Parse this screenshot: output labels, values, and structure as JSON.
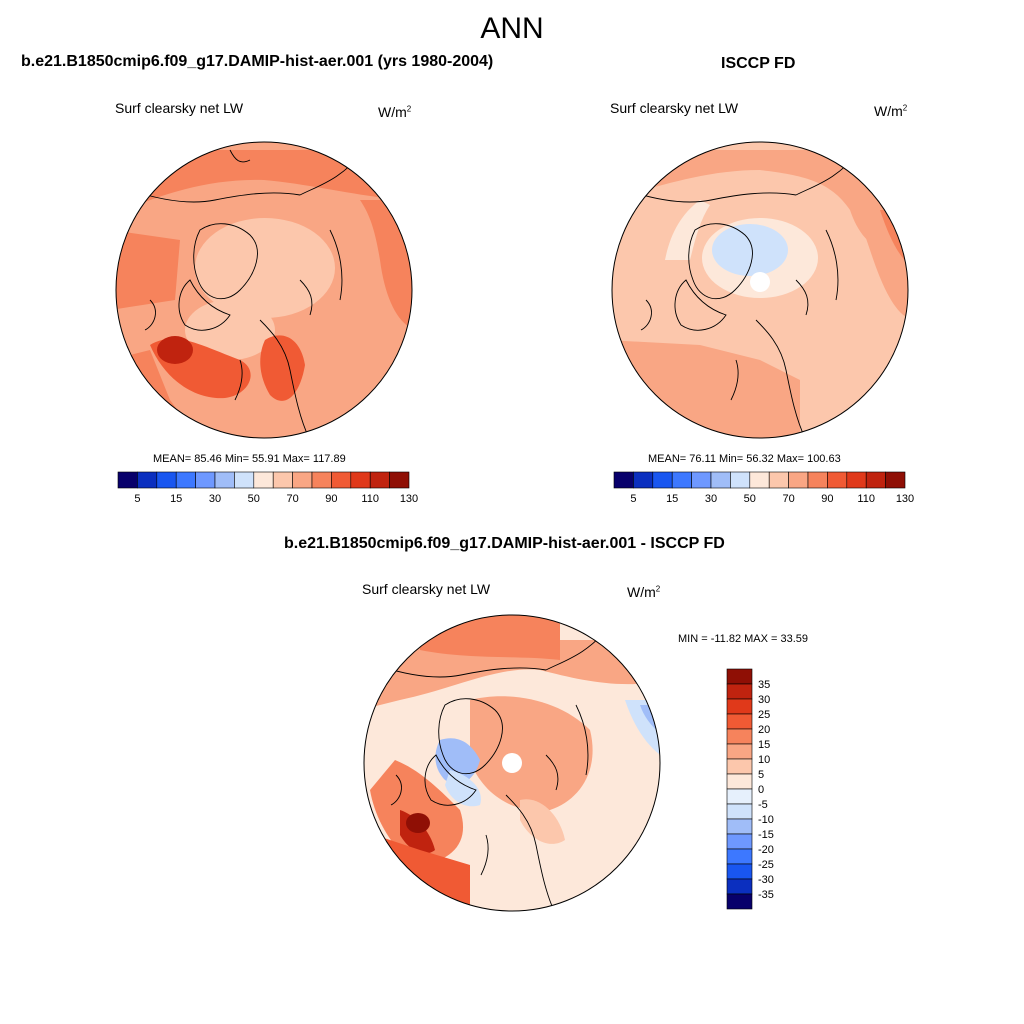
{
  "main_title": "ANN",
  "panels": {
    "model": {
      "title": "b.e21.B1850cmip6.f09_g17.DAMIP-hist-aer.001 (yrs 1980-2004)",
      "variable": "Surf clearsky net LW",
      "units_base": "W/m",
      "units_exp": "2",
      "stats": "MEAN=  85.46  Min=  55.91  Max= 117.89"
    },
    "obs": {
      "title": "ISCCP FD",
      "variable": "Surf clearsky net LW",
      "units_base": "W/m",
      "units_exp": "2",
      "stats": "MEAN=  76.11  Min=  56.32  Max= 100.63"
    },
    "diff": {
      "title": "b.e21.B1850cmip6.f09_g17.DAMIP-hist-aer.001 - ISCCP FD",
      "variable": "Surf clearsky net LW",
      "units_base": "W/m",
      "units_exp": "2",
      "stats": "MIN = -11.82 MAX =  33.59"
    }
  },
  "chart_data": [
    {
      "type": "heatmap",
      "projection": "north polar stereographic",
      "title": "b.e21.B1850cmip6.f09_g17.DAMIP-hist-aer.001 (yrs 1980-2004)",
      "variable": "Surf clearsky net LW",
      "units": "W/m2",
      "mean": 85.46,
      "min": 55.91,
      "max": 117.89,
      "colorbar": {
        "orientation": "horizontal",
        "levels": [
          0,
          5,
          10,
          15,
          20,
          30,
          40,
          50,
          60,
          70,
          80,
          90,
          100,
          110,
          120,
          130,
          140
        ],
        "tick_labels": [
          "5",
          "15",
          "30",
          "50",
          "70",
          "90",
          "110",
          "130"
        ],
        "colors": [
          "#08006b",
          "#0b2fbf",
          "#1956f0",
          "#3d78ff",
          "#6e98ff",
          "#a0bdf8",
          "#cfe2fb",
          "#fde8da",
          "#fcc7ac",
          "#f9a684",
          "#f6835c",
          "#f05a34",
          "#e0391a",
          "#c0230f",
          "#8f0f05"
        ]
      }
    },
    {
      "type": "heatmap",
      "projection": "north polar stereographic",
      "title": "ISCCP FD",
      "variable": "Surf clearsky net LW",
      "units": "W/m2",
      "mean": 76.11,
      "min": 56.32,
      "max": 100.63,
      "colorbar": {
        "orientation": "horizontal",
        "levels": [
          0,
          5,
          10,
          15,
          20,
          30,
          40,
          50,
          60,
          70,
          80,
          90,
          100,
          110,
          120,
          130,
          140
        ],
        "tick_labels": [
          "5",
          "15",
          "30",
          "50",
          "70",
          "90",
          "110",
          "130"
        ],
        "colors": [
          "#08006b",
          "#0b2fbf",
          "#1956f0",
          "#3d78ff",
          "#6e98ff",
          "#a0bdf8",
          "#cfe2fb",
          "#fde8da",
          "#fcc7ac",
          "#f9a684",
          "#f6835c",
          "#f05a34",
          "#e0391a",
          "#c0230f",
          "#8f0f05"
        ]
      }
    },
    {
      "type": "heatmap",
      "projection": "north polar stereographic",
      "title": "b.e21.B1850cmip6.f09_g17.DAMIP-hist-aer.001 - ISCCP FD",
      "variable": "Surf clearsky net LW",
      "units": "W/m2",
      "min": -11.82,
      "max": 33.59,
      "colorbar": {
        "orientation": "vertical",
        "tick_labels": [
          "35",
          "30",
          "25",
          "20",
          "15",
          "10",
          "5",
          "0",
          "-5",
          "-10",
          "-15",
          "-20",
          "-25",
          "-30",
          "-35"
        ],
        "colors": [
          "#8f0f05",
          "#c0230f",
          "#e0391a",
          "#f05a34",
          "#f6835c",
          "#f9a684",
          "#fcc7ac",
          "#fde8da",
          "#e6f0fc",
          "#cfe2fb",
          "#a0bdf8",
          "#6e98ff",
          "#3d78ff",
          "#1956f0",
          "#0b2fbf",
          "#08006b"
        ]
      }
    }
  ]
}
